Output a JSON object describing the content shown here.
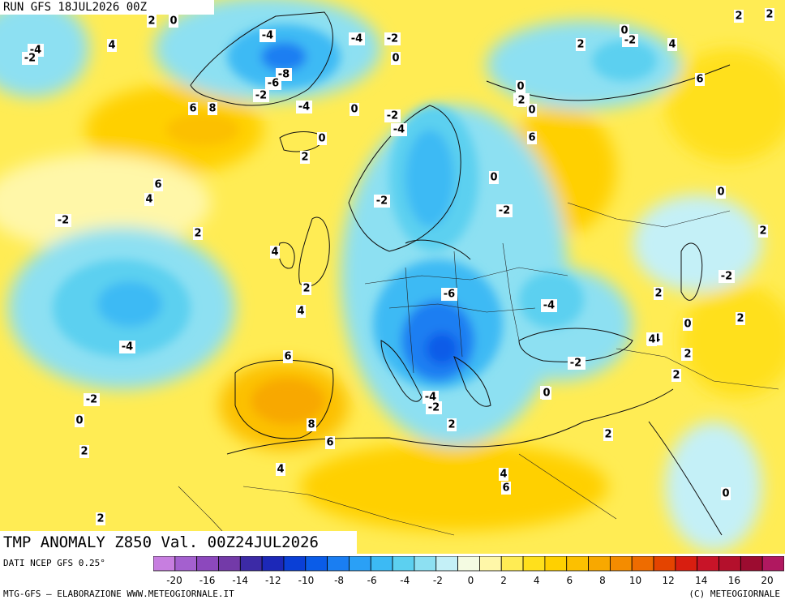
{
  "header": {
    "run": "RUN GFS 18JUL2026 00Z"
  },
  "map_title": "TMP ANOMALY Z850 Val. 00Z24JUL2026",
  "source_note": "DATI NCEP GFS 0.25°",
  "footer": {
    "left": "MTG-GFS – ELABORAZIONE WWW.METEOGIORNALE.IT",
    "right": "(C) METEOGIORNALE"
  },
  "legend": {
    "colors": [
      "#c77ee0",
      "#a460cf",
      "#8c48bd",
      "#733aa8",
      "#3c2aa6",
      "#1c28b8",
      "#0a3fd6",
      "#0a5ce8",
      "#1a7ef2",
      "#2aa0f6",
      "#3cbaf4",
      "#5cd0f0",
      "#8de0f2",
      "#c4f0f7",
      "#f4fbe2",
      "#fff7a8",
      "#ffec54",
      "#ffe01c",
      "#ffd000",
      "#fcc000",
      "#f8a800",
      "#f48c00",
      "#ee6c00",
      "#e44400",
      "#d81e10",
      "#c81428",
      "#b4102c",
      "#9c0c30",
      "#b01860"
    ],
    "tick_labels": [
      "-20",
      "-16",
      "-14",
      "-12",
      "-10",
      "-8",
      "-6",
      "-4",
      "-2",
      "0",
      "2",
      "4",
      "6",
      "8",
      "10",
      "12",
      "14",
      "16",
      "20"
    ]
  },
  "map_labels": [
    {
      "text": "2"
    },
    {
      "text": "0"
    },
    {
      "text": "-4"
    },
    {
      "text": "-2"
    },
    {
      "text": "4"
    },
    {
      "text": "-4"
    },
    {
      "text": "-8"
    },
    {
      "text": "-6"
    },
    {
      "text": "-2"
    },
    {
      "text": "-4"
    },
    {
      "text": "-2"
    },
    {
      "text": "0"
    },
    {
      "text": "6"
    },
    {
      "text": "8"
    },
    {
      "text": "-4"
    },
    {
      "text": "0"
    },
    {
      "text": "-2"
    },
    {
      "text": "-4"
    },
    {
      "text": "0"
    },
    {
      "text": "2"
    },
    {
      "text": "6"
    },
    {
      "text": "4"
    },
    {
      "text": "-2"
    },
    {
      "text": "2"
    },
    {
      "text": "4"
    },
    {
      "text": "-2"
    },
    {
      "text": "2"
    },
    {
      "text": "4"
    },
    {
      "text": "-4"
    },
    {
      "text": "6"
    },
    {
      "text": "-2"
    },
    {
      "text": "0"
    },
    {
      "text": "2"
    },
    {
      "text": "8"
    },
    {
      "text": "6"
    },
    {
      "text": "4"
    },
    {
      "text": "2"
    },
    {
      "text": "0"
    },
    {
      "text": "-2"
    },
    {
      "text": "-6"
    },
    {
      "text": "-4"
    },
    {
      "text": "-2"
    },
    {
      "text": "-4"
    },
    {
      "text": "-2"
    },
    {
      "text": "2"
    },
    {
      "text": "0"
    },
    {
      "text": "0"
    },
    {
      "text": "2"
    },
    {
      "text": "4"
    },
    {
      "text": "6"
    },
    {
      "text": "-2"
    },
    {
      "text": "-4"
    },
    {
      "text": "0"
    },
    {
      "text": "-2"
    },
    {
      "text": "2"
    },
    {
      "text": "0"
    },
    {
      "text": "2"
    },
    {
      "text": "2"
    },
    {
      "text": "0"
    },
    {
      "text": "-2"
    },
    {
      "text": "2"
    },
    {
      "text": "0"
    },
    {
      "text": "2"
    },
    {
      "text": "-2"
    },
    {
      "text": "2"
    },
    {
      "text": "0"
    },
    {
      "text": "4"
    },
    {
      "text": "4"
    },
    {
      "text": "2"
    },
    {
      "text": "2"
    },
    {
      "text": "2"
    },
    {
      "text": "4"
    },
    {
      "text": "6"
    },
    {
      "text": "0"
    },
    {
      "text": "6"
    },
    {
      "text": "2"
    }
  ]
}
